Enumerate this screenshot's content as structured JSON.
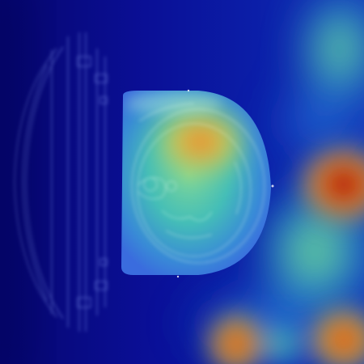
{
  "image": {
    "kind": "ct-slice-attention-heatmap-overlay",
    "colormap": "jet",
    "colors": {
      "low": "#00008b",
      "mid_low": "#1f4fd6",
      "mid": "#25b6c9",
      "mid_high": "#e6d83a",
      "high": "#d7301f",
      "max": "#7a0000"
    },
    "regions": [
      {
        "name": "cardiac-region",
        "intensity": "high"
      },
      {
        "name": "right-side-hotspot",
        "intensity": "max"
      },
      {
        "name": "bottom-center-hotspot",
        "intensity": "high"
      },
      {
        "name": "bottom-right-hotspot",
        "intensity": "high"
      },
      {
        "name": "top-right-band",
        "intensity": "mid"
      }
    ]
  }
}
